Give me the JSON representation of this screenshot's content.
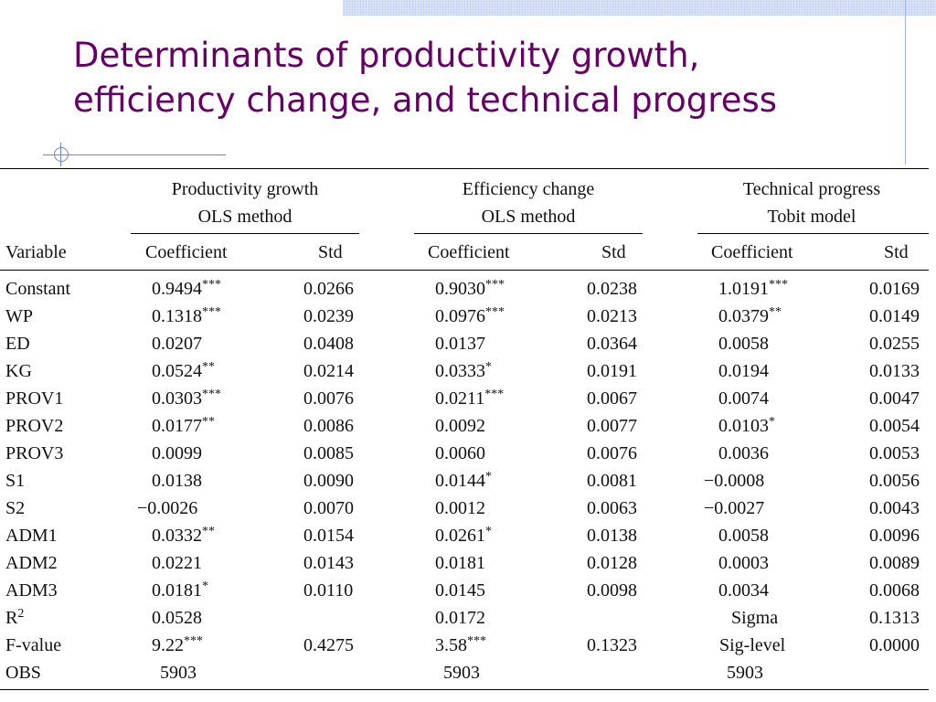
{
  "slide": {
    "title_line1": "Determinants of productivity growth,",
    "title_line2": "efficiency change, and technical progress"
  },
  "table": {
    "groups": [
      {
        "line1": "Productivity growth",
        "line2": "OLS method"
      },
      {
        "line1": "Efficiency change",
        "line2": "OLS method"
      },
      {
        "line1": "Technical progress",
        "line2": "Tobit model"
      }
    ],
    "header": {
      "variable": "Variable",
      "coef": "Coefficient",
      "std": "Std"
    },
    "rows": [
      {
        "var": "Constant",
        "var_sup": "",
        "c1": "0.9494",
        "s1": "***",
        "d1": "0.0266",
        "c2": "0.9030",
        "s2": "***",
        "d2": "0.0238",
        "c3": "1.0191",
        "s3": "***",
        "d3": "0.0169"
      },
      {
        "var": "WP",
        "var_sup": "",
        "c1": "0.1318",
        "s1": "***",
        "d1": "0.0239",
        "c2": "0.0976",
        "s2": "***",
        "d2": "0.0213",
        "c3": "0.0379",
        "s3": "**",
        "d3": "0.0149"
      },
      {
        "var": "ED",
        "var_sup": "",
        "c1": "0.0207",
        "s1": "",
        "d1": "0.0408",
        "c2": "0.0137",
        "s2": "",
        "d2": "0.0364",
        "c3": "0.0058",
        "s3": "",
        "d3": "0.0255"
      },
      {
        "var": "KG",
        "var_sup": "",
        "c1": "0.0524",
        "s1": "**",
        "d1": "0.0214",
        "c2": "0.0333",
        "s2": "*",
        "d2": "0.0191",
        "c3": "0.0194",
        "s3": "",
        "d3": "0.0133"
      },
      {
        "var": "PROV1",
        "var_sup": "",
        "c1": "0.0303",
        "s1": "***",
        "d1": "0.0076",
        "c2": "0.0211",
        "s2": "***",
        "d2": "0.0067",
        "c3": "0.0074",
        "s3": "",
        "d3": "0.0047"
      },
      {
        "var": "PROV2",
        "var_sup": "",
        "c1": "0.0177",
        "s1": "**",
        "d1": "0.0086",
        "c2": "0.0092",
        "s2": "",
        "d2": "0.0077",
        "c3": "0.0103",
        "s3": "*",
        "d3": "0.0054"
      },
      {
        "var": "PROV3",
        "var_sup": "",
        "c1": "0.0099",
        "s1": "",
        "d1": "0.0085",
        "c2": "0.0060",
        "s2": "",
        "d2": "0.0076",
        "c3": "0.0036",
        "s3": "",
        "d3": "0.0053"
      },
      {
        "var": "S1",
        "var_sup": "",
        "c1": "0.0138",
        "s1": "",
        "d1": "0.0090",
        "c2": "0.0144",
        "s2": "*",
        "d2": "0.0081",
        "c3": "−0.0008",
        "s3": "",
        "d3": "0.0056"
      },
      {
        "var": "S2",
        "var_sup": "",
        "c1": "−0.0026",
        "s1": "",
        "d1": "0.0070",
        "c2": "0.0012",
        "s2": "",
        "d2": "0.0063",
        "c3": "−0.0027",
        "s3": "",
        "d3": "0.0043"
      },
      {
        "var": "ADM1",
        "var_sup": "",
        "c1": "0.0332",
        "s1": "**",
        "d1": "0.0154",
        "c2": "0.0261",
        "s2": "*",
        "d2": "0.0138",
        "c3": "0.0058",
        "s3": "",
        "d3": "0.0096"
      },
      {
        "var": "ADM2",
        "var_sup": "",
        "c1": "0.0221",
        "s1": "",
        "d1": "0.0143",
        "c2": "0.0181",
        "s2": "",
        "d2": "0.0128",
        "c3": "0.0003",
        "s3": "",
        "d3": "0.0089"
      },
      {
        "var": "ADM3",
        "var_sup": "",
        "c1": "0.0181",
        "s1": "*",
        "d1": "0.0110",
        "c2": "0.0145",
        "s2": "",
        "d2": "0.0098",
        "c3": "0.0034",
        "s3": "",
        "d3": "0.0068"
      },
      {
        "var": "R",
        "var_sup": "2",
        "c1": "0.0528",
        "s1": "",
        "d1": "",
        "c2": "0.0172",
        "s2": "",
        "d2": "",
        "c3": "Sigma",
        "s3": "",
        "d3": "0.1313"
      },
      {
        "var": "F-value",
        "var_sup": "",
        "c1": "9.22",
        "s1": "***",
        "d1": "0.4275",
        "c2": "3.58",
        "s2": "***",
        "d2": "0.1323",
        "c3": "Sig-level",
        "s3": "",
        "d3": "0.0000"
      },
      {
        "var": "OBS",
        "var_sup": "",
        "c1": "5903",
        "s1": "",
        "d1": "",
        "c2": "5903",
        "s2": "",
        "d2": "",
        "c3": "5903",
        "s3": "",
        "d3": ""
      }
    ]
  }
}
